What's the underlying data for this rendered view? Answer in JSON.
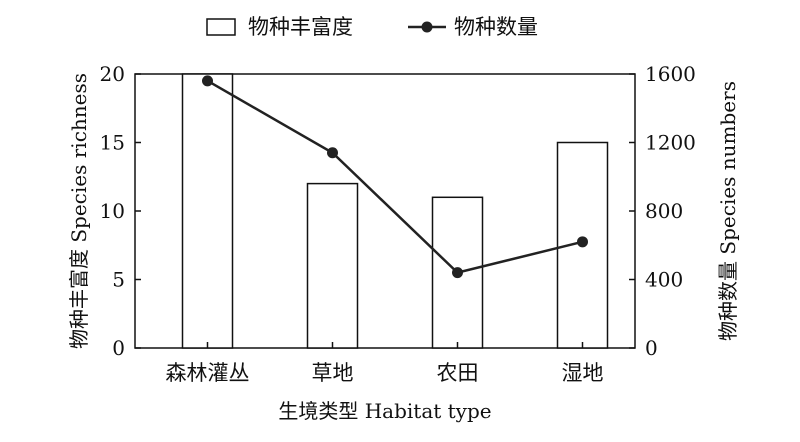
{
  "chart_data": {
    "type": "bar+line",
    "categories": [
      "森林灌丛",
      "草地",
      "农田",
      "湿地"
    ],
    "series": [
      {
        "name": "物种丰富度",
        "type": "bar",
        "axis": "left",
        "values": [
          20,
          12,
          11,
          15
        ]
      },
      {
        "name": "物种数量",
        "type": "line",
        "axis": "right",
        "values": [
          1560,
          1140,
          440,
          620
        ]
      }
    ],
    "xlabel": "生境类型 Habitat type",
    "ylabel_left": "物种丰富度 Species richness",
    "ylabel_right": "物种数量 Species numbers",
    "ylim_left": [
      0,
      20
    ],
    "ylim_right": [
      0,
      1600
    ],
    "yticks_left": [
      "0",
      "5",
      "10",
      "15",
      "20"
    ],
    "yticks_right": [
      "0",
      "400",
      "800",
      "1200",
      "1600"
    ],
    "legend_position": "top",
    "grid": false,
    "colors": {
      "bar_fill": "#ffffff",
      "bar_stroke": "#111111",
      "line": "#222222",
      "marker": "#222222"
    }
  }
}
